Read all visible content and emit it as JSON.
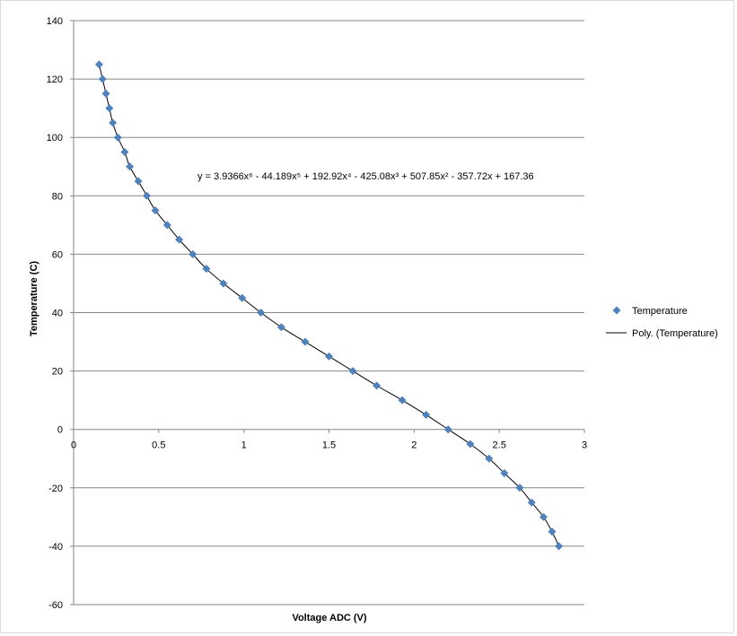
{
  "chart_data": {
    "type": "scatter",
    "xlabel": "Voltage ADC (V)",
    "ylabel": "Temperature (C)",
    "xlim": [
      0,
      3
    ],
    "ylim": [
      -60,
      140
    ],
    "x_ticks": [
      "0",
      "0.5",
      "1",
      "1.5",
      "2",
      "2.5",
      "3"
    ],
    "y_ticks": [
      "140",
      "120",
      "100",
      "80",
      "60",
      "40",
      "20",
      "0",
      "-20",
      "-40",
      "-60"
    ],
    "grid": "horizontal",
    "legend_position": "right",
    "series": [
      {
        "name": "Temperature",
        "marker": "diamond",
        "color": "#4f81bd",
        "points": [
          [
            0.15,
            125
          ],
          [
            0.17,
            120
          ],
          [
            0.19,
            115
          ],
          [
            0.21,
            110
          ],
          [
            0.23,
            105
          ],
          [
            0.26,
            100
          ],
          [
            0.3,
            95
          ],
          [
            0.33,
            90
          ],
          [
            0.38,
            85
          ],
          [
            0.43,
            80
          ],
          [
            0.48,
            75
          ],
          [
            0.55,
            70
          ],
          [
            0.62,
            65
          ],
          [
            0.7,
            60
          ],
          [
            0.78,
            55
          ],
          [
            0.88,
            50
          ],
          [
            0.99,
            45
          ],
          [
            1.1,
            40
          ],
          [
            1.22,
            35
          ],
          [
            1.36,
            30
          ],
          [
            1.5,
            25
          ],
          [
            1.64,
            20
          ],
          [
            1.78,
            15
          ],
          [
            1.93,
            10
          ],
          [
            2.07,
            5
          ],
          [
            2.2,
            0
          ],
          [
            2.33,
            -5
          ],
          [
            2.44,
            -10
          ],
          [
            2.53,
            -15
          ],
          [
            2.62,
            -20
          ],
          [
            2.69,
            -25
          ],
          [
            2.76,
            -30
          ],
          [
            2.81,
            -35
          ],
          [
            2.85,
            -40
          ]
        ]
      },
      {
        "name": "Poly. (Temperature)",
        "type": "trendline",
        "color": "#000000",
        "equation": "y = 3.9366x⁶ - 44.189x⁵ + 192.92x⁴ - 425.08x³ + 507.85x² - 357.72x + 167.36"
      }
    ]
  }
}
